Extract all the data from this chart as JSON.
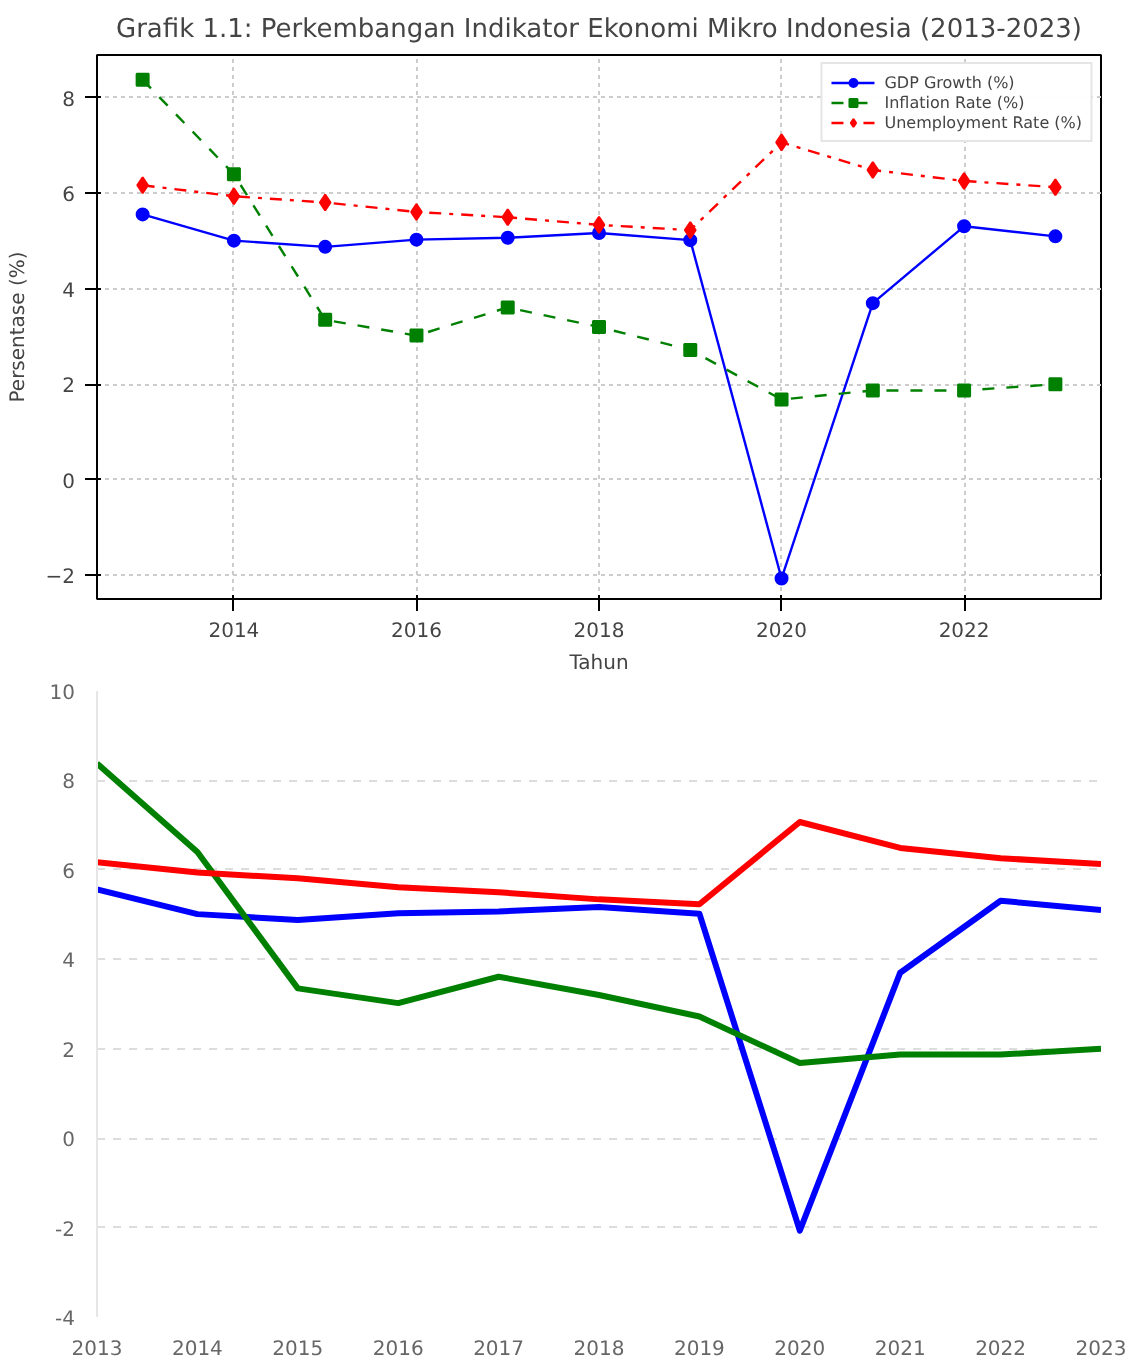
{
  "chart_data": [
    {
      "type": "line",
      "title": "Grafik 1.1: Perkembangan Indikator Ekonomi Mikro Indonesia (2013-2023)",
      "xlabel": "Tahun",
      "ylabel": "Persentase (%)",
      "x": [
        2013,
        2014,
        2015,
        2016,
        2017,
        2018,
        2019,
        2020,
        2021,
        2022,
        2023
      ],
      "series": [
        {
          "name": "GDP Growth (%)",
          "color": "#0000ff",
          "marker": "circle",
          "line_style": "solid",
          "values": [
            5.56,
            5.01,
            4.88,
            5.03,
            5.07,
            5.17,
            5.02,
            -2.07,
            3.7,
            5.31,
            5.1
          ]
        },
        {
          "name": "Inflation Rate (%)",
          "color": "#008000",
          "marker": "square",
          "line_style": "dashed",
          "values": [
            8.38,
            6.4,
            3.35,
            3.02,
            3.61,
            3.2,
            2.72,
            1.68,
            1.87,
            1.87,
            2.0
          ]
        },
        {
          "name": "Unemployment Rate (%)",
          "color": "#ff0000",
          "marker": "diamond",
          "line_style": "dashdot",
          "values": [
            6.17,
            5.94,
            5.81,
            5.61,
            5.5,
            5.34,
            5.23,
            7.07,
            6.49,
            6.26,
            6.13
          ]
        }
      ],
      "xlim": [
        2012.5,
        2023.5
      ],
      "ylim": [
        -2.5,
        8.9
      ],
      "xticks": [
        2014,
        2016,
        2018,
        2020,
        2022
      ],
      "yticks": [
        -2,
        0,
        2,
        4,
        6,
        8
      ],
      "grid": true,
      "legend": "top right"
    },
    {
      "type": "line",
      "x": [
        2013,
        2014,
        2015,
        2016,
        2017,
        2018,
        2019,
        2020,
        2021,
        2022,
        2023
      ],
      "series": [
        {
          "color": "#0000ff",
          "values": [
            5.56,
            5.01,
            4.88,
            5.03,
            5.07,
            5.17,
            5.02,
            -2.07,
            3.7,
            5.31,
            5.1
          ]
        },
        {
          "color": "#008000",
          "values": [
            8.38,
            6.4,
            3.35,
            3.02,
            3.61,
            3.2,
            2.72,
            1.68,
            1.87,
            1.87,
            2.0
          ]
        },
        {
          "color": "#ff0000",
          "values": [
            6.17,
            5.94,
            5.81,
            5.61,
            5.5,
            5.34,
            5.23,
            7.07,
            6.49,
            6.26,
            6.13
          ]
        }
      ],
      "xlim": [
        2013,
        2023
      ],
      "ylim": [
        -4,
        10
      ],
      "xticks": [
        2013,
        2014,
        2015,
        2016,
        2017,
        2018,
        2019,
        2020,
        2021,
        2022,
        2023
      ],
      "yticks": [
        -4,
        -2,
        0,
        2,
        4,
        6,
        8,
        10
      ],
      "grid": "y",
      "marker": "none",
      "legend": false
    }
  ]
}
